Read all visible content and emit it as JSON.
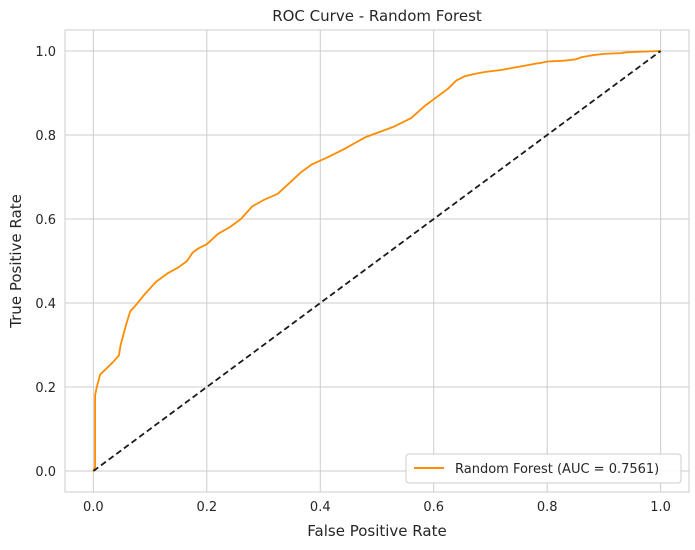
{
  "chart_data": {
    "type": "line",
    "title": "ROC Curve - Random Forest",
    "xlabel": "False Positive Rate",
    "ylabel": "True Positive Rate",
    "xlim": [
      -0.05,
      1.05
    ],
    "ylim": [
      -0.05,
      1.05
    ],
    "x_ticks": [
      0.0,
      0.2,
      0.4,
      0.6,
      0.8,
      1.0
    ],
    "x_tick_labels": [
      "0.0",
      "0.2",
      "0.4",
      "0.6",
      "0.8",
      "1.0"
    ],
    "y_ticks": [
      0.0,
      0.2,
      0.4,
      0.6,
      0.8,
      1.0
    ],
    "y_tick_labels": [
      "0.0",
      "0.2",
      "0.4",
      "0.6",
      "0.8",
      "1.0"
    ],
    "grid": true,
    "legend_position": "lower-right",
    "series": [
      {
        "name": "Random Forest (AUC = 0.7561)",
        "color": "#ff8c00",
        "style": "solid",
        "x": [
          0.0,
          0.003,
          0.003,
          0.006,
          0.012,
          0.02,
          0.035,
          0.045,
          0.048,
          0.052,
          0.058,
          0.065,
          0.075,
          0.09,
          0.11,
          0.13,
          0.15,
          0.165,
          0.175,
          0.185,
          0.2,
          0.22,
          0.24,
          0.26,
          0.28,
          0.3,
          0.325,
          0.345,
          0.365,
          0.385,
          0.41,
          0.44,
          0.46,
          0.48,
          0.5,
          0.53,
          0.56,
          0.585,
          0.6,
          0.615,
          0.625,
          0.64,
          0.655,
          0.67,
          0.69,
          0.72,
          0.74,
          0.76,
          0.78,
          0.79,
          0.8,
          0.83,
          0.85,
          0.86,
          0.88,
          0.9,
          0.93,
          0.94,
          0.96,
          0.98,
          1.0
        ],
        "y": [
          0.0,
          0.01,
          0.18,
          0.2,
          0.23,
          0.24,
          0.26,
          0.275,
          0.3,
          0.32,
          0.35,
          0.38,
          0.395,
          0.42,
          0.45,
          0.47,
          0.485,
          0.5,
          0.52,
          0.53,
          0.54,
          0.565,
          0.58,
          0.6,
          0.63,
          0.645,
          0.66,
          0.685,
          0.71,
          0.73,
          0.745,
          0.765,
          0.78,
          0.795,
          0.805,
          0.82,
          0.84,
          0.87,
          0.885,
          0.9,
          0.91,
          0.93,
          0.94,
          0.945,
          0.95,
          0.955,
          0.96,
          0.965,
          0.97,
          0.972,
          0.975,
          0.977,
          0.98,
          0.985,
          0.99,
          0.993,
          0.995,
          0.997,
          0.998,
          0.999,
          1.0
        ]
      },
      {
        "name": "",
        "color": "#1a1a1a",
        "style": "dashed",
        "x": [
          0.0,
          1.0
        ],
        "y": [
          0.0,
          1.0
        ]
      }
    ]
  }
}
